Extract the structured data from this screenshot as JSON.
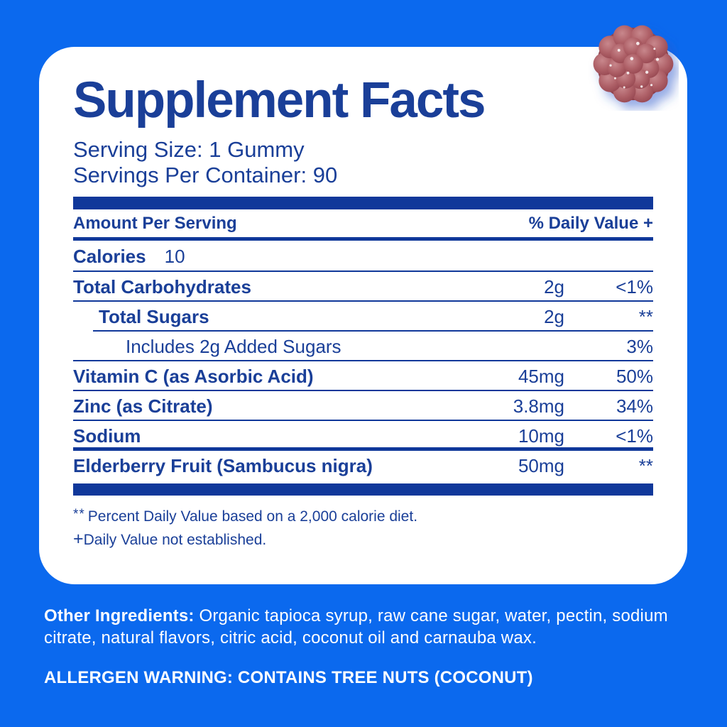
{
  "colors": {
    "background": "#0B69EE",
    "card": "#FFFFFF",
    "label_text": "#1A3F98",
    "bar": "#10389A",
    "footer_text": "#FFFFFF",
    "gummy_light": "#C8878C",
    "gummy_dark": "#93444E"
  },
  "panel": {
    "title": "Supplement Facts",
    "serving_size": "Serving Size: 1 Gummy",
    "servings_per_container": "Servings Per Container: 90",
    "header": {
      "left": "Amount Per Serving",
      "right": "% Daily Value +"
    },
    "calories": {
      "label": "Calories",
      "value": "10"
    },
    "rows": [
      {
        "name": "Total Carbohydrates",
        "amount": "2g",
        "dv": "<1%",
        "indent": 0,
        "bold": true
      },
      {
        "name": "Total Sugars",
        "amount": "2g",
        "dv": "**",
        "indent": 1,
        "bold": true,
        "line_indent": true
      },
      {
        "name": "Includes 2g Added Sugars",
        "amount": "",
        "dv": "3%",
        "indent": 2,
        "bold": false
      },
      {
        "name": "Vitamin C (as Asorbic Acid)",
        "amount": "45mg",
        "dv": "50%",
        "indent": 0,
        "bold": true
      },
      {
        "name": "Zinc (as Citrate)",
        "amount": "3.8mg",
        "dv": "34%",
        "indent": 0,
        "bold": true
      },
      {
        "name": "Sodium",
        "amount": "10mg",
        "dv": "<1%",
        "indent": 0,
        "bold": true,
        "thick_after": true
      },
      {
        "name": "Elderberry Fruit (Sambucus nigra)",
        "amount": "50mg",
        "dv": "**",
        "indent": 0,
        "bold": true,
        "no_line": true
      }
    ],
    "footnotes": {
      "daily_value_stars": "**",
      "daily_value": "Percent Daily Value based on a 2,000 calorie diet.",
      "plus_sign": "+",
      "not_established": "Daily Value not established."
    }
  },
  "footer": {
    "other_ingredients_label": "Other Ingredients:",
    "other_ingredients_text": " Organic tapioca syrup, raw cane sugar, water, pectin, sodium citrate, natural flavors, citric acid, coconut oil and carnauba wax.",
    "allergen_warning": "ALLERGEN WARNING: CONTAINS TREE NUTS (COCONUT)"
  }
}
